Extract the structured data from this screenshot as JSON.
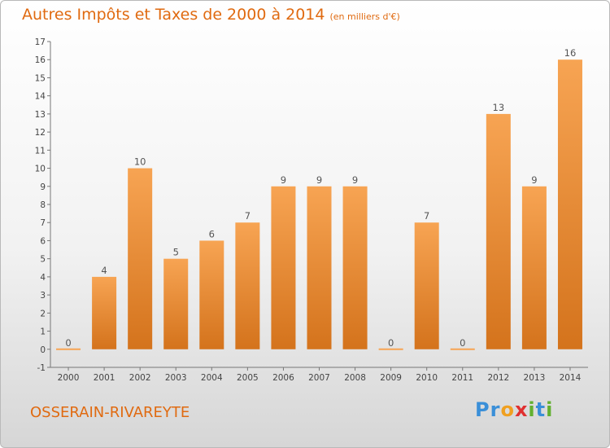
{
  "title": "Autres Impôts et Taxes de 2000 à 2014",
  "unit": "(en milliers d'€)",
  "commune": "OSSERAIN-RIVAREYTE",
  "logo": [
    "P",
    "r",
    "o",
    "x",
    "i",
    "t",
    "i"
  ],
  "logo_colors": [
    "#3a8fd8",
    "#3a8fd8",
    "#f0a020",
    "#e03030",
    "#62b030",
    "#3a8fd8",
    "#62b030"
  ],
  "colors": {
    "bar_top": "#f7a453",
    "bar_bottom": "#d4731c",
    "accent": "#e06a10"
  },
  "chart_data": {
    "type": "bar",
    "title": "Autres Impôts et Taxes de 2000 à 2014",
    "categories": [
      "2000",
      "2001",
      "2002",
      "2003",
      "2004",
      "2005",
      "2006",
      "2007",
      "2008",
      "2009",
      "2010",
      "2011",
      "2012",
      "2013",
      "2014"
    ],
    "values": [
      0,
      4,
      10,
      5,
      6,
      7,
      9,
      9,
      9,
      0,
      7,
      0,
      13,
      9,
      16
    ],
    "ylim": [
      -1,
      17
    ],
    "yticks": [
      "-1",
      "0",
      "1",
      "2",
      "3",
      "4",
      "5",
      "6",
      "7",
      "8",
      "9",
      "10",
      "11",
      "12",
      "13",
      "14",
      "15",
      "16",
      "17"
    ],
    "grid": false,
    "legend": "none"
  }
}
